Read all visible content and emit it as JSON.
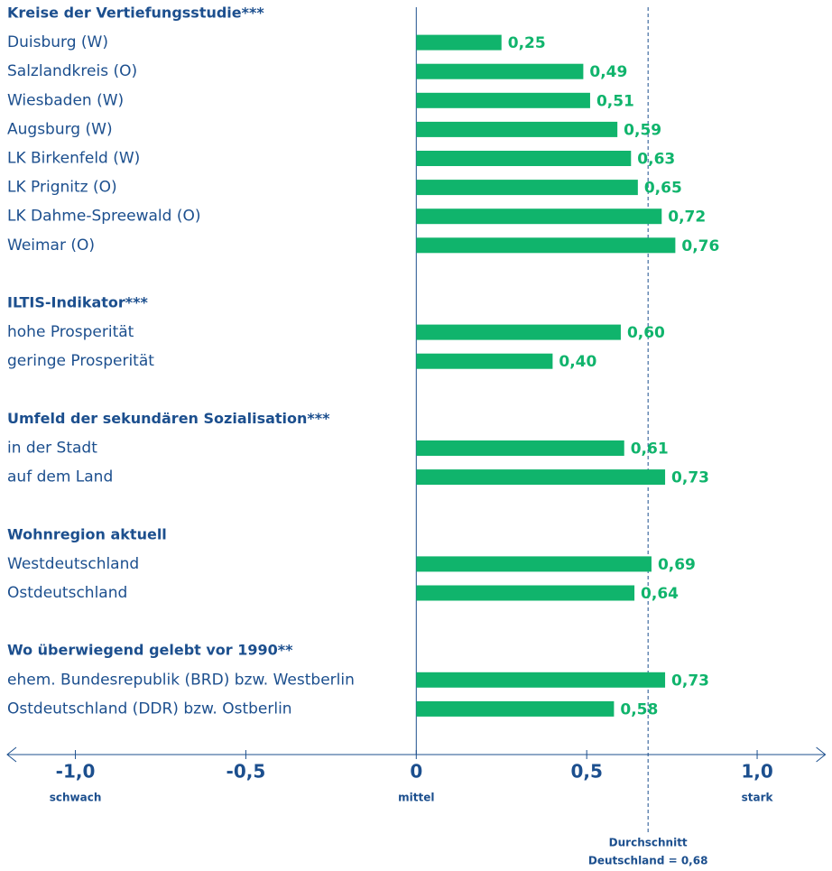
{
  "chart_data": {
    "type": "bar",
    "orientation": "horizontal",
    "color": "#10b46c",
    "text_color": "#1c4f8e",
    "xlim": [
      -1.2,
      1.2
    ],
    "xticks": [
      {
        "value": -1.0,
        "label": "-1,0"
      },
      {
        "value": -0.5,
        "label": "-0,5"
      },
      0,
      {
        "value": 0.5,
        "label": "0,5"
      },
      {
        "value": 1.0,
        "label": "1,0"
      }
    ],
    "axis_notes": [
      {
        "value": -1.0,
        "label": "schwach"
      },
      {
        "value": 0,
        "label": "mittel"
      },
      {
        "value": 1.0,
        "label": "stark"
      }
    ],
    "reference": {
      "value": 0.68,
      "label": [
        "Durchschnitt",
        "Deutschland = 0,68"
      ]
    },
    "groups": [
      {
        "title": "Kreise der Vertiefungsstudie***",
        "categories": [
          "Duisburg (W)",
          "Salzlandkreis (O)",
          "Wiesbaden (W)",
          "Augsburg (W)",
          "LK Birkenfeld (W)",
          "LK Prignitz (O)",
          "LK Dahme-Spreewald (O)",
          "Weimar (O)"
        ],
        "values": [
          0.25,
          0.49,
          0.51,
          0.59,
          0.63,
          0.65,
          0.72,
          0.76
        ],
        "value_labels": [
          "0,25",
          "0,49",
          "0,51",
          "0,59",
          "0,63",
          "0,65",
          "0,72",
          "0,76"
        ]
      },
      {
        "title": "ILTIS-Indikator***",
        "categories": [
          "hohe Prosperität",
          "geringe Prosperität"
        ],
        "values": [
          0.6,
          0.4
        ],
        "value_labels": [
          "0,60",
          "0,40"
        ]
      },
      {
        "title": "Umfeld der sekundären Sozialisation***",
        "categories": [
          "in der Stadt",
          "auf dem Land"
        ],
        "values": [
          0.61,
          0.73
        ],
        "value_labels": [
          "0,61",
          "0,73"
        ]
      },
      {
        "title": "Wohnregion aktuell",
        "categories": [
          "Westdeutschland",
          "Ostdeutschland"
        ],
        "values": [
          0.69,
          0.64
        ],
        "value_labels": [
          "0,69",
          "0,64"
        ]
      },
      {
        "title": "Wo überwiegend gelebt vor 1990**",
        "categories": [
          "ehem. Bundesrepublik (BRD) bzw. Westberlin",
          "Ostdeutschland (DDR) bzw. Ostberlin"
        ],
        "values": [
          0.73,
          0.58
        ],
        "value_labels": [
          "0,73",
          "0,58"
        ]
      }
    ]
  }
}
